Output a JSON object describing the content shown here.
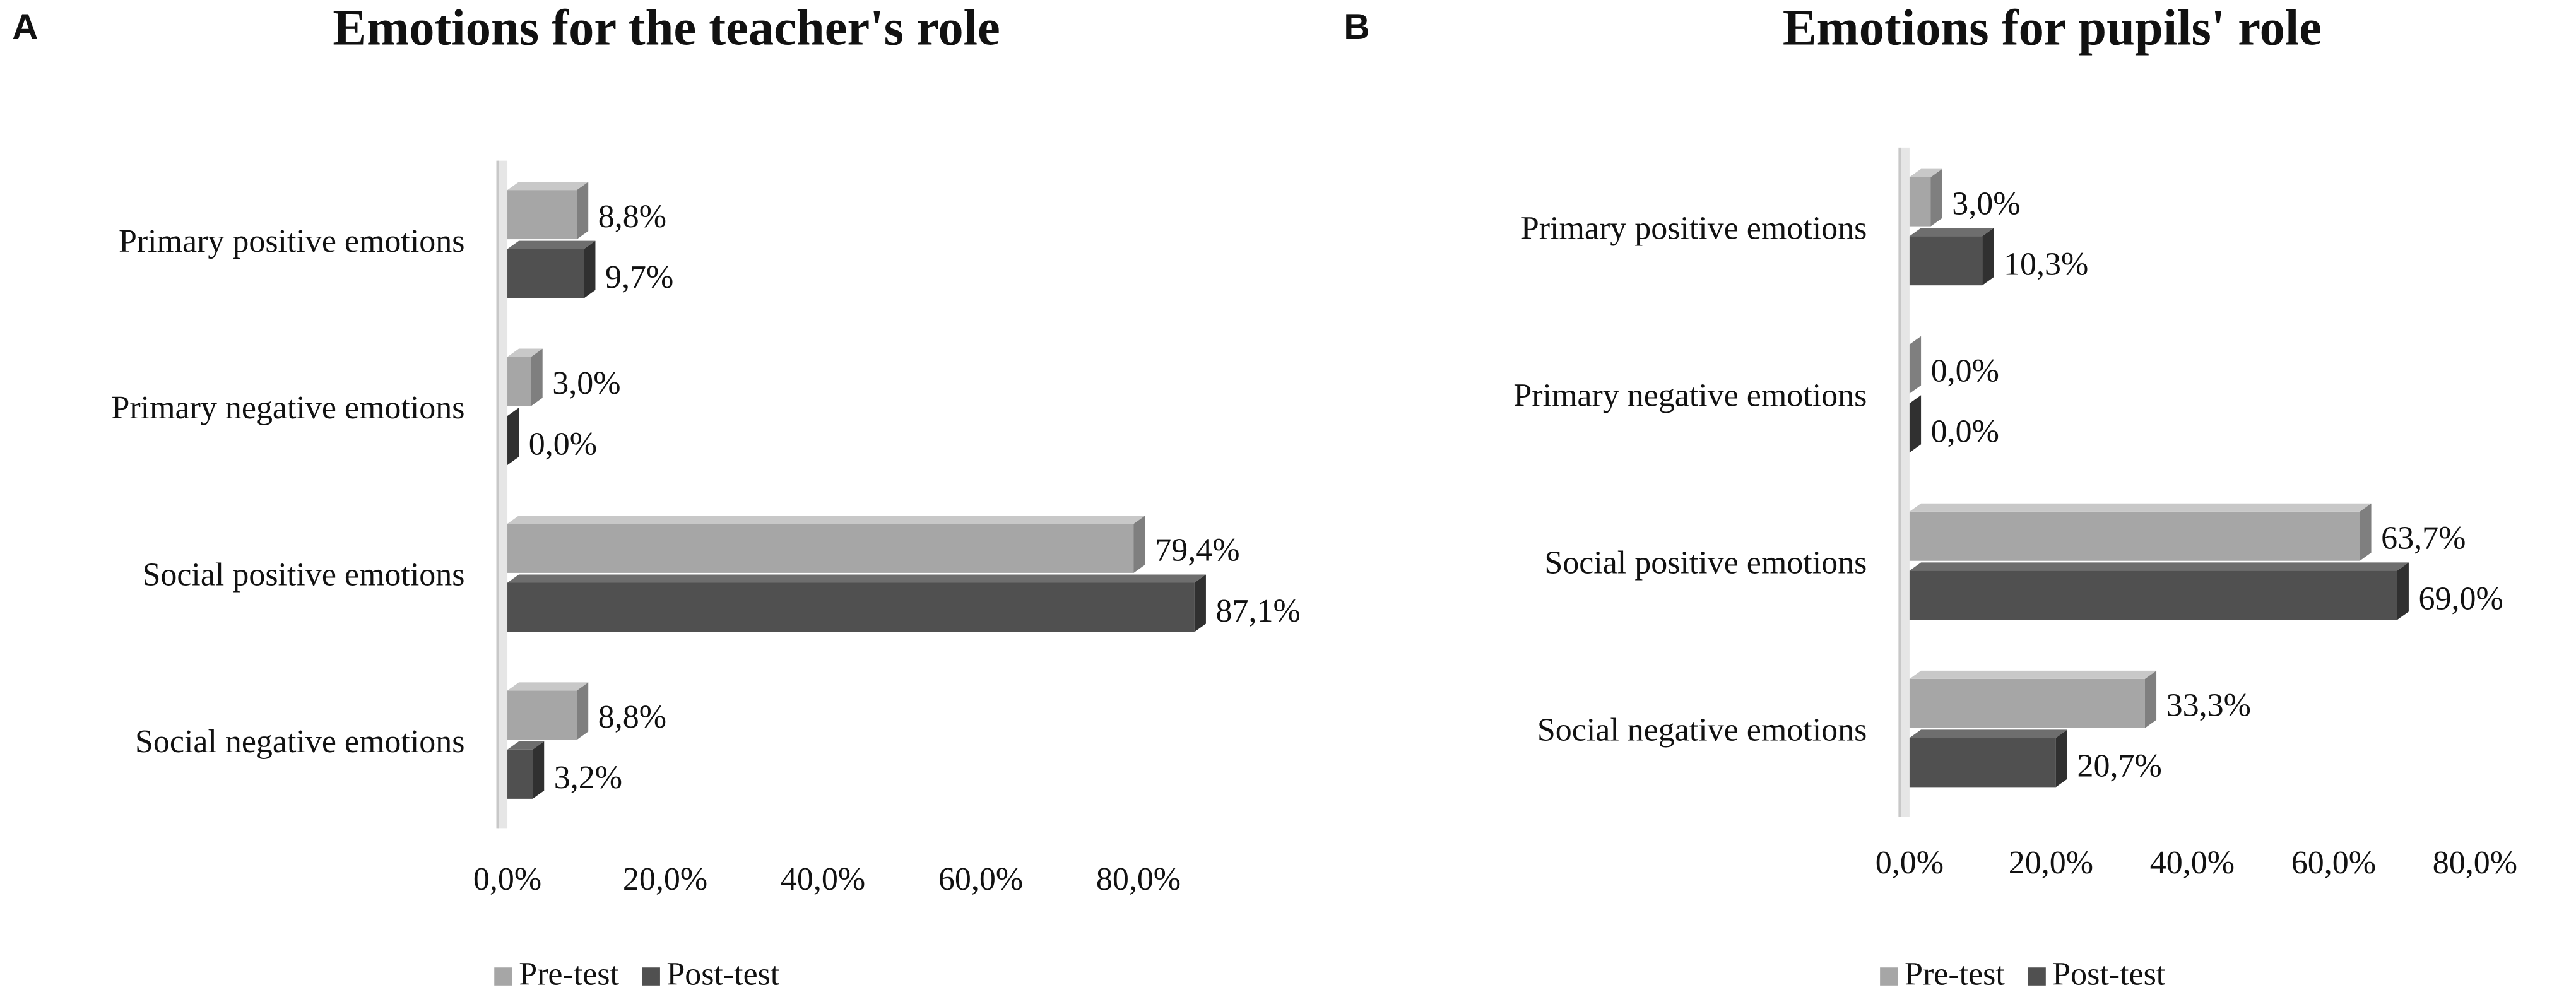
{
  "chart_data": [
    {
      "type": "bar",
      "orientation": "horizontal",
      "panel": "A",
      "title": "Emotions for the teacher's role",
      "categories": [
        "Primary positive emotions",
        "Primary negative emotions",
        "Social positive emotions",
        "Social negative emotions"
      ],
      "series": [
        {
          "name": "Pre-test",
          "color": "#a6a6a6",
          "values": [
            8.8,
            3.0,
            79.4,
            8.8
          ],
          "value_labels": [
            "8,8%",
            "3,0%",
            "79,4%",
            "8,8%"
          ]
        },
        {
          "name": "Post-test",
          "color": "#505050",
          "values": [
            9.7,
            0.0,
            87.1,
            3.2
          ],
          "value_labels": [
            "9,7%",
            "0,0%",
            "87,1%",
            "3,2%"
          ]
        }
      ],
      "xlim": [
        0,
        90
      ],
      "xticks": [
        {
          "value": 0,
          "label": "0,0%"
        },
        {
          "value": 20,
          "label": "20,0%"
        },
        {
          "value": 40,
          "label": "40,0%"
        },
        {
          "value": 60,
          "label": "60,0%"
        },
        {
          "value": 80,
          "label": "80,0%"
        }
      ],
      "grid": false,
      "legend": "bottom"
    },
    {
      "type": "bar",
      "orientation": "horizontal",
      "panel": "B",
      "title": "Emotions for pupils' role",
      "categories": [
        "Primary positive emotions",
        "Primary negative emotions",
        "Social positive emotions",
        "Social negative emotions"
      ],
      "series": [
        {
          "name": "Pre-test",
          "color": "#a6a6a6",
          "values": [
            3.0,
            0.0,
            63.7,
            33.3
          ],
          "value_labels": [
            "3,0%",
            "0,0%",
            "63,7%",
            "33,3%"
          ]
        },
        {
          "name": "Post-test",
          "color": "#505050",
          "values": [
            10.3,
            0.0,
            69.0,
            20.7
          ],
          "value_labels": [
            "10,3%",
            "0,0%",
            "69,0%",
            "20,7%"
          ]
        }
      ],
      "xlim": [
        0,
        90
      ],
      "xticks": [
        {
          "value": 0,
          "label": "0,0%"
        },
        {
          "value": 20,
          "label": "20,0%"
        },
        {
          "value": 40,
          "label": "40,0%"
        },
        {
          "value": 60,
          "label": "60,0%"
        },
        {
          "value": 80,
          "label": "80,0%"
        }
      ],
      "grid": false,
      "legend": "bottom"
    }
  ]
}
